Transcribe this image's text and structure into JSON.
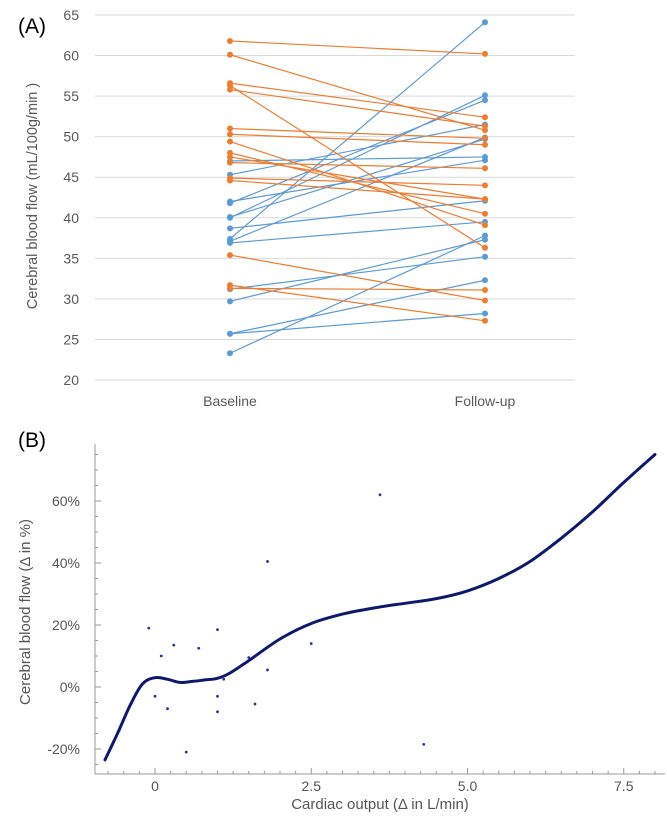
{
  "chart_data": [
    {
      "panel_label": "(A)",
      "type": "line",
      "ylabel": "Cerebral blood flow (mL/100g/min )",
      "ylim": [
        20,
        65
      ],
      "yticks": [
        20,
        25,
        30,
        35,
        40,
        45,
        50,
        55,
        60,
        65
      ],
      "categories": [
        "Baseline",
        "Follow-up"
      ],
      "grid": true,
      "colors": {
        "increase": "#5b9bd5",
        "decrease": "#ed7d31"
      },
      "series": [
        {
          "values": [
            23.3,
            37.8
          ]
        },
        {
          "values": [
            25.7,
            32.3
          ]
        },
        {
          "values": [
            25.7,
            28.2
          ]
        },
        {
          "values": [
            29.7,
            37.3
          ]
        },
        {
          "values": [
            31.2,
            35.2
          ]
        },
        {
          "values": [
            36.9,
            39.5
          ]
        },
        {
          "values": [
            37.1,
            49.9
          ]
        },
        {
          "values": [
            37.4,
            64.1
          ]
        },
        {
          "values": [
            38.7,
            42.1
          ]
        },
        {
          "values": [
            40.0,
            55.1
          ]
        },
        {
          "values": [
            40.1,
            49.7
          ]
        },
        {
          "values": [
            41.8,
            54.5
          ]
        },
        {
          "values": [
            42.0,
            47.1
          ]
        },
        {
          "values": [
            45.3,
            51.5
          ]
        },
        {
          "values": [
            47.0,
            47.5
          ]
        },
        {
          "values": [
            47.5,
            42.3
          ]
        },
        {
          "values": [
            61.8,
            60.2
          ]
        },
        {
          "values": [
            60.1,
            50.8
          ]
        },
        {
          "values": [
            56.6,
            52.4
          ]
        },
        {
          "values": [
            56.3,
            36.3
          ]
        },
        {
          "values": [
            55.8,
            51.3
          ]
        },
        {
          "values": [
            51.0,
            49.8
          ]
        },
        {
          "values": [
            50.3,
            49.0
          ]
        },
        {
          "values": [
            49.4,
            39.1
          ]
        },
        {
          "values": [
            48.0,
            40.5
          ]
        },
        {
          "values": [
            46.8,
            46.1
          ]
        },
        {
          "values": [
            44.9,
            44.0
          ]
        },
        {
          "values": [
            44.6,
            42.3
          ]
        },
        {
          "values": [
            35.4,
            29.8
          ]
        },
        {
          "values": [
            31.7,
            27.3
          ]
        },
        {
          "values": [
            31.3,
            31.1
          ]
        }
      ]
    },
    {
      "panel_label": "(B)",
      "type": "scatter",
      "xlabel": "Cardiac output (Δ in L/min)",
      "ylabel": "Cerebral blood flow (Δ in %)",
      "xlim": [
        -1,
        8.3
      ],
      "ylim": [
        -25,
        75
      ],
      "xticks": [
        "0",
        "2.5",
        "5.0",
        "7.5"
      ],
      "xtick_values": [
        0,
        2.5,
        5.0,
        7.5
      ],
      "yticks": [
        "-20%",
        "0%",
        "20%",
        "40%",
        "60%"
      ],
      "ytick_values": [
        -20,
        0,
        20,
        40,
        60
      ],
      "grid": false,
      "colors": {
        "curve": "#0d1a6b",
        "points": "#2233aa"
      },
      "points": [
        {
          "x": -0.1,
          "y": 19
        },
        {
          "x": 0.0,
          "y": -3
        },
        {
          "x": 0.1,
          "y": 10
        },
        {
          "x": 0.2,
          "y": -7
        },
        {
          "x": 0.3,
          "y": 13.5
        },
        {
          "x": 0.5,
          "y": -21
        },
        {
          "x": 0.7,
          "y": 12.5
        },
        {
          "x": 1.0,
          "y": 18.5
        },
        {
          "x": 1.0,
          "y": -3
        },
        {
          "x": 1.0,
          "y": -8
        },
        {
          "x": 1.1,
          "y": 2.5
        },
        {
          "x": 1.5,
          "y": 9.5
        },
        {
          "x": 1.6,
          "y": -5.5
        },
        {
          "x": 1.8,
          "y": 40.5
        },
        {
          "x": 1.8,
          "y": 5.5
        },
        {
          "x": 2.5,
          "y": 14
        },
        {
          "x": 3.6,
          "y": 62
        },
        {
          "x": 4.3,
          "y": -18.5
        }
      ],
      "fit_curve": [
        {
          "x": -0.8,
          "y": -23.5
        },
        {
          "x": -0.6,
          "y": -15
        },
        {
          "x": -0.4,
          "y": -6
        },
        {
          "x": -0.2,
          "y": 1
        },
        {
          "x": 0.0,
          "y": 3
        },
        {
          "x": 0.2,
          "y": 2.5
        },
        {
          "x": 0.4,
          "y": 1.5
        },
        {
          "x": 0.6,
          "y": 1.8
        },
        {
          "x": 0.8,
          "y": 2.3
        },
        {
          "x": 1.0,
          "y": 2.8
        },
        {
          "x": 1.2,
          "y": 4.5
        },
        {
          "x": 1.5,
          "y": 8.5
        },
        {
          "x": 2.0,
          "y": 15.5
        },
        {
          "x": 2.5,
          "y": 20.5
        },
        {
          "x": 3.0,
          "y": 23.5
        },
        {
          "x": 3.5,
          "y": 25.5
        },
        {
          "x": 4.0,
          "y": 27
        },
        {
          "x": 4.5,
          "y": 28.5
        },
        {
          "x": 5.0,
          "y": 31
        },
        {
          "x": 5.5,
          "y": 35
        },
        {
          "x": 6.0,
          "y": 40.5
        },
        {
          "x": 6.5,
          "y": 48
        },
        {
          "x": 7.0,
          "y": 56.5
        },
        {
          "x": 7.5,
          "y": 66
        },
        {
          "x": 8.0,
          "y": 75
        }
      ]
    }
  ]
}
